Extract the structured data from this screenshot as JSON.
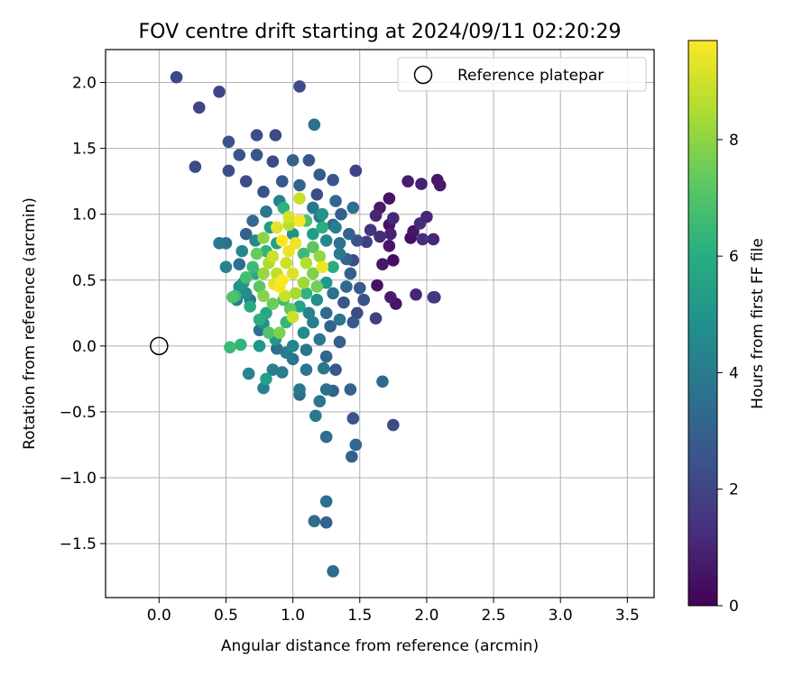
{
  "chart_data": {
    "type": "scatter",
    "title": "FOV centre drift starting at 2024/09/11 02:20:29",
    "xlabel": "Angular distance from reference (arcmin)",
    "ylabel": "Rotation from reference (arcmin)",
    "xlim": [
      -0.4,
      3.7
    ],
    "ylim": [
      -1.91,
      2.25
    ],
    "xticks": [
      0.0,
      0.5,
      1.0,
      1.5,
      2.0,
      2.5,
      3.0,
      3.5
    ],
    "xtick_labels": [
      "0.0",
      "0.5",
      "1.0",
      "1.5",
      "2.0",
      "2.5",
      "3.0",
      "3.5"
    ],
    "yticks": [
      -1.5,
      -1.0,
      -0.5,
      0.0,
      0.5,
      1.0,
      1.5,
      2.0
    ],
    "ytick_labels": [
      "−1.5",
      "−1.0",
      "−0.5",
      "0.0",
      "0.5",
      "1.0",
      "1.5",
      "2.0"
    ],
    "grid": true,
    "legend": {
      "position": "top-right",
      "entries": [
        "Reference platepar"
      ]
    },
    "reference_point": {
      "x": 0.0,
      "y": 0.0
    },
    "colorbar": {
      "label": "Hours from first FF file",
      "colormap": "viridis",
      "min": 0,
      "max": 9.7,
      "ticks": [
        0,
        2,
        4,
        6,
        8
      ],
      "tick_labels": [
        "0",
        "2",
        "4",
        "6",
        "8"
      ]
    },
    "points": [
      {
        "x": 0.13,
        "y": 2.04,
        "c": 2.1
      },
      {
        "x": 0.3,
        "y": 1.81,
        "c": 2.0
      },
      {
        "x": 0.45,
        "y": 1.93,
        "c": 2.0
      },
      {
        "x": 1.05,
        "y": 1.97,
        "c": 2.2
      },
      {
        "x": 0.27,
        "y": 1.36,
        "c": 2.2
      },
      {
        "x": 0.52,
        "y": 1.55,
        "c": 2.4
      },
      {
        "x": 0.73,
        "y": 1.6,
        "c": 2.3
      },
      {
        "x": 0.87,
        "y": 1.6,
        "c": 2.1
      },
      {
        "x": 1.16,
        "y": 1.68,
        "c": 3.5
      },
      {
        "x": 0.6,
        "y": 1.45,
        "c": 2.5
      },
      {
        "x": 0.52,
        "y": 1.33,
        "c": 2.3
      },
      {
        "x": 0.73,
        "y": 1.45,
        "c": 2.6
      },
      {
        "x": 0.85,
        "y": 1.4,
        "c": 2.2
      },
      {
        "x": 1.0,
        "y": 1.41,
        "c": 3.0
      },
      {
        "x": 1.12,
        "y": 1.41,
        "c": 2.6
      },
      {
        "x": 1.2,
        "y": 1.3,
        "c": 2.8
      },
      {
        "x": 1.3,
        "y": 1.26,
        "c": 2.5
      },
      {
        "x": 1.47,
        "y": 1.33,
        "c": 1.9
      },
      {
        "x": 0.65,
        "y": 1.25,
        "c": 2.2
      },
      {
        "x": 0.78,
        "y": 1.17,
        "c": 2.4
      },
      {
        "x": 0.92,
        "y": 1.25,
        "c": 2.7
      },
      {
        "x": 1.05,
        "y": 1.22,
        "c": 3.0
      },
      {
        "x": 1.18,
        "y": 1.15,
        "c": 2.3
      },
      {
        "x": 1.32,
        "y": 1.1,
        "c": 3.2
      },
      {
        "x": 1.45,
        "y": 1.05,
        "c": 3.6
      },
      {
        "x": 1.65,
        "y": 1.05,
        "c": 0.7
      },
      {
        "x": 1.72,
        "y": 1.12,
        "c": 0.5
      },
      {
        "x": 1.86,
        "y": 1.25,
        "c": 0.8
      },
      {
        "x": 1.96,
        "y": 1.23,
        "c": 0.9
      },
      {
        "x": 2.08,
        "y": 1.26,
        "c": 0.6
      },
      {
        "x": 2.1,
        "y": 1.22,
        "c": 0.7
      },
      {
        "x": 1.62,
        "y": 0.99,
        "c": 1.0
      },
      {
        "x": 1.75,
        "y": 0.97,
        "c": 1.1
      },
      {
        "x": 1.72,
        "y": 0.92,
        "c": 0.5
      },
      {
        "x": 1.95,
        "y": 0.93,
        "c": 1.2
      },
      {
        "x": 2.0,
        "y": 0.98,
        "c": 1.0
      },
      {
        "x": 1.9,
        "y": 0.87,
        "c": 0.6
      },
      {
        "x": 1.88,
        "y": 0.82,
        "c": 0.4
      },
      {
        "x": 1.97,
        "y": 0.81,
        "c": 1.3
      },
      {
        "x": 2.05,
        "y": 0.81,
        "c": 1.1
      },
      {
        "x": 1.58,
        "y": 0.88,
        "c": 1.5
      },
      {
        "x": 1.65,
        "y": 0.83,
        "c": 1.2
      },
      {
        "x": 1.73,
        "y": 0.85,
        "c": 0.9
      },
      {
        "x": 1.72,
        "y": 0.76,
        "c": 0.6
      },
      {
        "x": 1.55,
        "y": 0.79,
        "c": 1.8
      },
      {
        "x": 1.75,
        "y": 0.65,
        "c": 0.4
      },
      {
        "x": 1.67,
        "y": 0.62,
        "c": 0.6
      },
      {
        "x": 1.63,
        "y": 0.46,
        "c": 0.5
      },
      {
        "x": 1.73,
        "y": 0.37,
        "c": 0.8
      },
      {
        "x": 1.77,
        "y": 0.32,
        "c": 0.6
      },
      {
        "x": 1.92,
        "y": 0.39,
        "c": 1.0
      },
      {
        "x": 2.05,
        "y": 0.37,
        "c": 1.6
      },
      {
        "x": 2.06,
        "y": 0.37,
        "c": 1.5
      },
      {
        "x": 1.62,
        "y": 0.21,
        "c": 1.8
      },
      {
        "x": 1.5,
        "y": 0.44,
        "c": 2.8
      },
      {
        "x": 1.53,
        "y": 0.35,
        "c": 2.4
      },
      {
        "x": 1.48,
        "y": 0.25,
        "c": 2.2
      },
      {
        "x": 1.43,
        "y": 0.55,
        "c": 2.9
      },
      {
        "x": 1.4,
        "y": 0.66,
        "c": 3.0
      },
      {
        "x": 1.48,
        "y": 0.8,
        "c": 2.5
      },
      {
        "x": 1.35,
        "y": 0.78,
        "c": 3.6
      },
      {
        "x": 1.3,
        "y": 0.92,
        "c": 3.3
      },
      {
        "x": 1.2,
        "y": 0.98,
        "c": 4.0
      },
      {
        "x": 1.45,
        "y": 0.18,
        "c": 2.7
      },
      {
        "x": 1.35,
        "y": 0.03,
        "c": 2.9
      },
      {
        "x": 1.25,
        "y": -0.08,
        "c": 3.2
      },
      {
        "x": 1.32,
        "y": -0.18,
        "c": 2.7
      },
      {
        "x": 1.3,
        "y": -0.34,
        "c": 3.1
      },
      {
        "x": 1.43,
        "y": -0.33,
        "c": 3.0
      },
      {
        "x": 1.67,
        "y": -0.27,
        "c": 3.3
      },
      {
        "x": 1.45,
        "y": -0.55,
        "c": 2.5
      },
      {
        "x": 1.75,
        "y": -0.6,
        "c": 2.2
      },
      {
        "x": 1.47,
        "y": -0.75,
        "c": 3.2
      },
      {
        "x": 1.44,
        "y": -0.84,
        "c": 3.0
      },
      {
        "x": 1.25,
        "y": -0.69,
        "c": 3.5
      },
      {
        "x": 1.17,
        "y": -0.53,
        "c": 3.9
      },
      {
        "x": 1.2,
        "y": -0.42,
        "c": 3.8
      },
      {
        "x": 1.05,
        "y": -0.33,
        "c": 3.9
      },
      {
        "x": 1.25,
        "y": -0.33,
        "c": 3.6
      },
      {
        "x": 1.05,
        "y": -0.37,
        "c": 3.4
      },
      {
        "x": 1.1,
        "y": -0.18,
        "c": 3.7
      },
      {
        "x": 1.23,
        "y": -0.17,
        "c": 3.9
      },
      {
        "x": 0.92,
        "y": -0.2,
        "c": 4.1
      },
      {
        "x": 0.85,
        "y": -0.18,
        "c": 4.2
      },
      {
        "x": 0.67,
        "y": -0.21,
        "c": 4.4
      },
      {
        "x": 0.78,
        "y": -0.32,
        "c": 4.3
      },
      {
        "x": 0.8,
        "y": -0.25,
        "c": 5.5
      },
      {
        "x": 0.75,
        "y": 0.0,
        "c": 5.1
      },
      {
        "x": 0.53,
        "y": -0.01,
        "c": 6.6
      },
      {
        "x": 0.61,
        "y": 0.01,
        "c": 6.3
      },
      {
        "x": 1.25,
        "y": -1.18,
        "c": 3.6
      },
      {
        "x": 1.16,
        "y": -1.33,
        "c": 3.4
      },
      {
        "x": 1.25,
        "y": -1.34,
        "c": 3.1
      },
      {
        "x": 1.3,
        "y": -1.71,
        "c": 3.3
      },
      {
        "x": 0.45,
        "y": 0.78,
        "c": 4.0
      },
      {
        "x": 0.5,
        "y": 0.78,
        "c": 3.7
      },
      {
        "x": 0.5,
        "y": 0.6,
        "c": 4.3
      },
      {
        "x": 0.57,
        "y": 0.38,
        "c": 6.5
      },
      {
        "x": 0.58,
        "y": 0.35,
        "c": 4.2
      },
      {
        "x": 0.55,
        "y": 0.37,
        "c": 7.0
      },
      {
        "x": 0.63,
        "y": 0.48,
        "c": 5.2
      },
      {
        "x": 0.65,
        "y": 0.52,
        "c": 6.8
      },
      {
        "x": 0.72,
        "y": 0.8,
        "c": 4.6
      },
      {
        "x": 0.83,
        "y": 0.9,
        "c": 5.4
      },
      {
        "x": 0.93,
        "y": 1.05,
        "c": 6.2
      },
      {
        "x": 1.05,
        "y": 1.12,
        "c": 8.9
      },
      {
        "x": 0.97,
        "y": 0.98,
        "c": 9.1
      },
      {
        "x": 1.05,
        "y": 0.95,
        "c": 9.6
      },
      {
        "x": 0.88,
        "y": 0.9,
        "c": 9.3
      },
      {
        "x": 0.92,
        "y": 0.8,
        "c": 9.7
      },
      {
        "x": 0.97,
        "y": 0.72,
        "c": 9.4
      },
      {
        "x": 1.02,
        "y": 0.78,
        "c": 9.5
      },
      {
        "x": 0.95,
        "y": 0.63,
        "c": 9.0
      },
      {
        "x": 1.0,
        "y": 0.55,
        "c": 9.2
      },
      {
        "x": 0.88,
        "y": 0.55,
        "c": 8.8
      },
      {
        "x": 0.82,
        "y": 0.63,
        "c": 8.5
      },
      {
        "x": 0.86,
        "y": 0.47,
        "c": 9.3
      },
      {
        "x": 0.9,
        "y": 0.45,
        "c": 9.6
      },
      {
        "x": 1.1,
        "y": 0.63,
        "c": 8.6
      },
      {
        "x": 1.15,
        "y": 0.55,
        "c": 7.8
      },
      {
        "x": 1.22,
        "y": 0.6,
        "c": 9.5
      },
      {
        "x": 1.0,
        "y": 0.22,
        "c": 9.0
      },
      {
        "x": 0.78,
        "y": 0.82,
        "c": 8.0
      },
      {
        "x": 0.73,
        "y": 0.7,
        "c": 7.4
      },
      {
        "x": 0.7,
        "y": 0.6,
        "c": 6.6
      },
      {
        "x": 0.75,
        "y": 0.45,
        "c": 7.2
      },
      {
        "x": 0.78,
        "y": 0.38,
        "c": 7.9
      },
      {
        "x": 0.85,
        "y": 0.32,
        "c": 7.5
      },
      {
        "x": 0.93,
        "y": 0.35,
        "c": 6.7
      },
      {
        "x": 0.8,
        "y": 0.25,
        "c": 5.8
      },
      {
        "x": 0.78,
        "y": 0.17,
        "c": 4.9
      },
      {
        "x": 0.82,
        "y": 0.1,
        "c": 7.0
      },
      {
        "x": 0.9,
        "y": 0.1,
        "c": 7.8
      },
      {
        "x": 0.95,
        "y": 0.18,
        "c": 6.4
      },
      {
        "x": 1.05,
        "y": 0.3,
        "c": 5.6
      },
      {
        "x": 1.1,
        "y": 0.4,
        "c": 6.2
      },
      {
        "x": 1.18,
        "y": 0.35,
        "c": 4.8
      },
      {
        "x": 1.25,
        "y": 0.48,
        "c": 5.1
      },
      {
        "x": 1.3,
        "y": 0.6,
        "c": 6.0
      },
      {
        "x": 1.25,
        "y": 0.8,
        "c": 4.5
      },
      {
        "x": 1.15,
        "y": 0.85,
        "c": 5.3
      },
      {
        "x": 1.1,
        "y": 0.95,
        "c": 6.9
      },
      {
        "x": 1.22,
        "y": 1.0,
        "c": 5.0
      },
      {
        "x": 1.32,
        "y": 0.9,
        "c": 4.2
      },
      {
        "x": 1.35,
        "y": 0.7,
        "c": 4.0
      },
      {
        "x": 1.3,
        "y": 0.4,
        "c": 3.6
      },
      {
        "x": 1.25,
        "y": 0.25,
        "c": 3.4
      },
      {
        "x": 1.15,
        "y": 0.18,
        "c": 4.1
      },
      {
        "x": 1.08,
        "y": 0.1,
        "c": 4.6
      },
      {
        "x": 1.2,
        "y": 0.05,
        "c": 3.9
      },
      {
        "x": 1.1,
        "y": -0.03,
        "c": 3.7
      },
      {
        "x": 1.0,
        "y": 0.0,
        "c": 4.4
      },
      {
        "x": 0.95,
        "y": -0.05,
        "c": 4.0
      },
      {
        "x": 0.87,
        "y": 0.05,
        "c": 5.2
      },
      {
        "x": 0.75,
        "y": 0.2,
        "c": 6.1
      },
      {
        "x": 0.68,
        "y": 0.3,
        "c": 5.9
      },
      {
        "x": 0.65,
        "y": 0.4,
        "c": 4.7
      },
      {
        "x": 0.72,
        "y": 0.55,
        "c": 5.8
      },
      {
        "x": 0.8,
        "y": 0.72,
        "c": 6.3
      },
      {
        "x": 0.88,
        "y": 0.78,
        "c": 5.5
      },
      {
        "x": 1.0,
        "y": 0.85,
        "c": 4.9
      },
      {
        "x": 1.08,
        "y": 0.7,
        "c": 6.6
      },
      {
        "x": 1.15,
        "y": 0.75,
        "c": 7.2
      },
      {
        "x": 1.2,
        "y": 0.68,
        "c": 8.1
      },
      {
        "x": 1.02,
        "y": 0.4,
        "c": 8.4
      },
      {
        "x": 0.92,
        "y": 0.5,
        "c": 9.8
      },
      {
        "x": 1.08,
        "y": 0.48,
        "c": 8.3
      },
      {
        "x": 0.98,
        "y": 0.28,
        "c": 7.3
      },
      {
        "x": 1.28,
        "y": 0.15,
        "c": 3.0
      },
      {
        "x": 1.38,
        "y": 0.33,
        "c": 2.6
      },
      {
        "x": 1.4,
        "y": 0.45,
        "c": 3.3
      },
      {
        "x": 1.42,
        "y": 0.85,
        "c": 3.1
      },
      {
        "x": 1.36,
        "y": 1.0,
        "c": 2.9
      },
      {
        "x": 1.15,
        "y": 1.05,
        "c": 3.8
      },
      {
        "x": 0.9,
        "y": 1.1,
        "c": 4.3
      },
      {
        "x": 0.8,
        "y": 1.02,
        "c": 3.9
      },
      {
        "x": 0.7,
        "y": 0.95,
        "c": 3.3
      },
      {
        "x": 0.65,
        "y": 0.85,
        "c": 3.0
      },
      {
        "x": 0.62,
        "y": 0.72,
        "c": 4.5
      },
      {
        "x": 0.6,
        "y": 0.62,
        "c": 3.5
      },
      {
        "x": 0.6,
        "y": 0.45,
        "c": 4.8
      },
      {
        "x": 0.68,
        "y": 0.35,
        "c": 3.8
      },
      {
        "x": 0.75,
        "y": 0.12,
        "c": 3.6
      },
      {
        "x": 0.88,
        "y": -0.02,
        "c": 3.5
      },
      {
        "x": 1.0,
        "y": -0.1,
        "c": 3.8
      },
      {
        "x": 1.12,
        "y": 0.25,
        "c": 4.3
      },
      {
        "x": 1.35,
        "y": 0.2,
        "c": 3.9
      },
      {
        "x": 1.45,
        "y": 0.65,
        "c": 2.3
      },
      {
        "x": 1.22,
        "y": 0.9,
        "c": 6.1
      },
      {
        "x": 0.97,
        "y": 0.92,
        "c": 8.7
      },
      {
        "x": 0.85,
        "y": 0.68,
        "c": 9.0
      },
      {
        "x": 1.18,
        "y": 0.45,
        "c": 7.6
      },
      {
        "x": 0.78,
        "y": 0.55,
        "c": 8.2
      },
      {
        "x": 0.94,
        "y": 0.38,
        "c": 8.9
      }
    ]
  }
}
